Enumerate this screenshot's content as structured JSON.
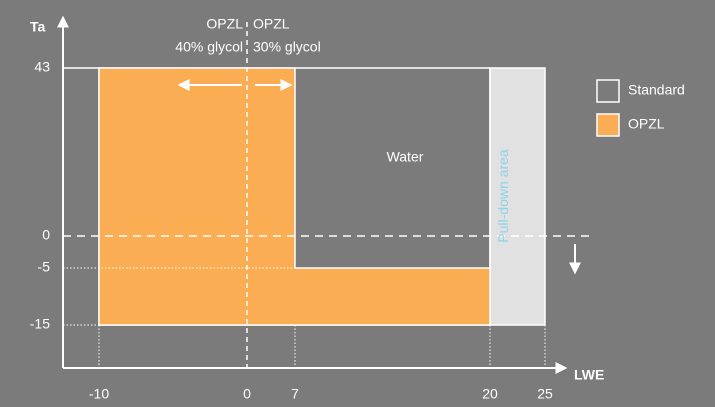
{
  "axes": {
    "y_label": "Ta",
    "x_label": "LWE",
    "y_ticks": [
      "43",
      "0",
      "-5",
      "-15"
    ],
    "x_ticks": [
      "-10",
      "0",
      "7",
      "20",
      "25"
    ]
  },
  "annotations": {
    "opzl_40": {
      "name": "OPZL",
      "detail": "40% glycol"
    },
    "opzl_30": {
      "name": "OPZL",
      "detail": "30% glycol"
    },
    "water": "Water",
    "pull_down": "Pull-down area"
  },
  "legend": [
    {
      "label": "Standard"
    },
    {
      "label": "OPZL"
    }
  ]
}
